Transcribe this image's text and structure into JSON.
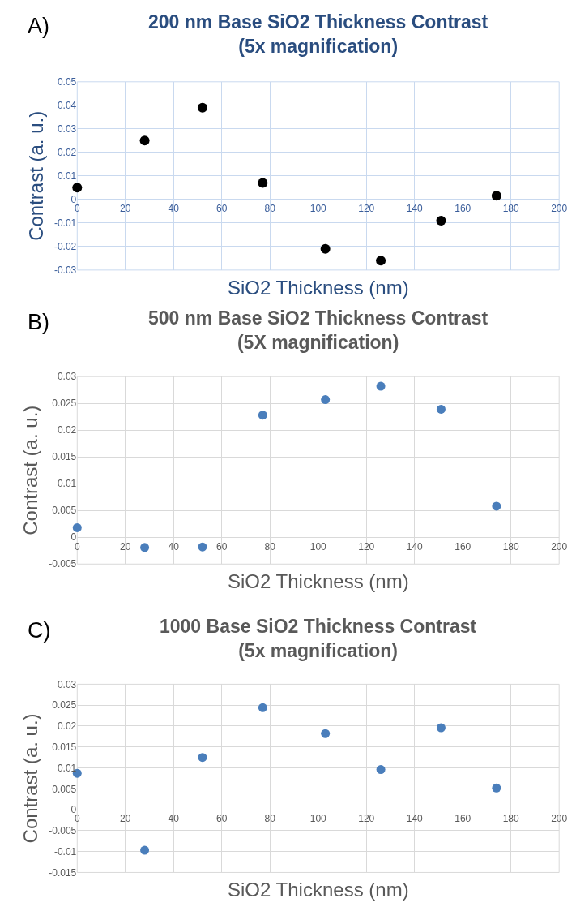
{
  "chart_data": [
    {
      "type": "scatter",
      "title": "200 nm Base SiO2 Thickness Contrast\n(5x magnification)",
      "xlabel": "SiO2 Thickness (nm)",
      "ylabel": "Contrast (a. u.)",
      "annotations": [
        "A)"
      ],
      "x": [
        0,
        28,
        52,
        77,
        103,
        126,
        151,
        174
      ],
      "values": [
        0.005,
        0.025,
        0.039,
        0.007,
        -0.021,
        -0.026,
        -0.009,
        0.0016
      ],
      "color": "#000000",
      "xlim": [
        0,
        200
      ],
      "xticks": [
        0,
        20,
        40,
        60,
        80,
        100,
        120,
        140,
        160,
        180,
        200
      ],
      "ylim": [
        -0.03,
        0.05
      ],
      "yticks": [
        -0.03,
        -0.02,
        -0.01,
        0,
        0.01,
        0.02,
        0.03,
        0.04,
        0.05
      ],
      "grid": true,
      "marker": "circle"
    },
    {
      "type": "scatter",
      "title": "500 nm Base SiO2 Thickness Contrast\n(5X magnification)",
      "xlabel": "SiO2 Thickness (nm)",
      "ylabel": "Contrast (a. u.)",
      "annotations": [
        "B)"
      ],
      "x": [
        0,
        28,
        52,
        77,
        103,
        126,
        151,
        174
      ],
      "values": [
        0.0018,
        -0.0019,
        -0.0018,
        0.0228,
        0.0257,
        0.0282,
        0.0239,
        0.0058
      ],
      "color": "#4a7ebb",
      "xlim": [
        0,
        200
      ],
      "xticks": [
        0,
        20,
        40,
        60,
        80,
        100,
        120,
        140,
        160,
        180,
        200
      ],
      "ylim": [
        -0.005,
        0.03
      ],
      "yticks": [
        -0.005,
        0,
        0.005,
        0.01,
        0.015,
        0.02,
        0.025,
        0.03
      ],
      "grid": true,
      "marker": "circle"
    },
    {
      "type": "scatter",
      "title": "1000 Base SiO2 Thickness Contrast\n(5x magnification)",
      "xlabel": "SiO2 Thickness (nm)",
      "ylabel": "Contrast (a. u.)",
      "annotations": [
        "C)"
      ],
      "x": [
        0,
        28,
        52,
        77,
        103,
        126,
        151,
        174
      ],
      "values": [
        0.0087,
        -0.0097,
        0.0125,
        0.0244,
        0.0182,
        0.0096,
        0.0196,
        0.0052
      ],
      "color": "#4a7ebb",
      "xlim": [
        0,
        200
      ],
      "xticks": [
        0,
        20,
        40,
        60,
        80,
        100,
        120,
        140,
        160,
        180,
        200
      ],
      "ylim": [
        -0.015,
        0.03
      ],
      "yticks": [
        -0.015,
        -0.01,
        -0.005,
        0,
        0.005,
        0.01,
        0.015,
        0.02,
        0.025,
        0.03
      ],
      "grid": true,
      "marker": "circle"
    }
  ]
}
